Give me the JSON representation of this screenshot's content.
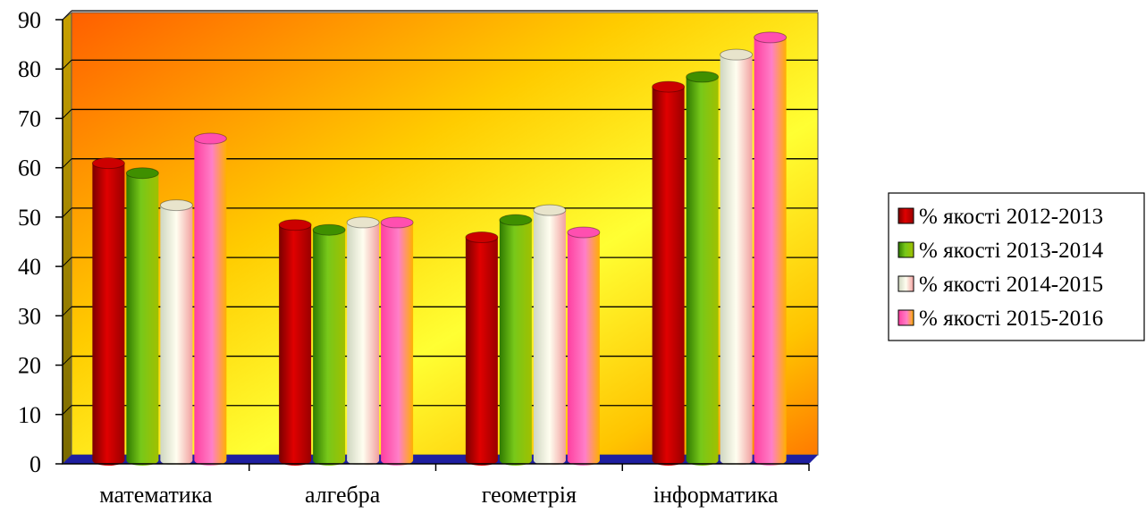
{
  "chart_data": {
    "type": "bar",
    "title": "",
    "xlabel": "",
    "ylabel": "",
    "ylim": [
      0,
      90
    ],
    "yticks": [
      0,
      10,
      20,
      30,
      40,
      50,
      60,
      70,
      80,
      90
    ],
    "grid": true,
    "legend_position": "right",
    "categories": [
      "математика",
      "алгебра",
      "геометрія",
      "інформатика"
    ],
    "series": [
      {
        "name": "% якості 2012-2013",
        "color": "#cc0000",
        "values": [
          60,
          47.5,
          45,
          75.5
        ]
      },
      {
        "name": "% якості 2013-2014",
        "color": "#3f8f00",
        "values": [
          58,
          46.5,
          48.5,
          77.5
        ]
      },
      {
        "name": "% якості 2014-2015",
        "color": "#e8e4cc",
        "values": [
          51.5,
          48,
          50.5,
          82
        ]
      },
      {
        "name": "% якості 2015-2016",
        "color": "#ff4fb0",
        "values": [
          65,
          48,
          46,
          85.5
        ]
      }
    ],
    "background_colors": {
      "wall_left": "#ff6a00",
      "wall_right": "#ffee00",
      "floor": "#1f1fa0"
    }
  }
}
